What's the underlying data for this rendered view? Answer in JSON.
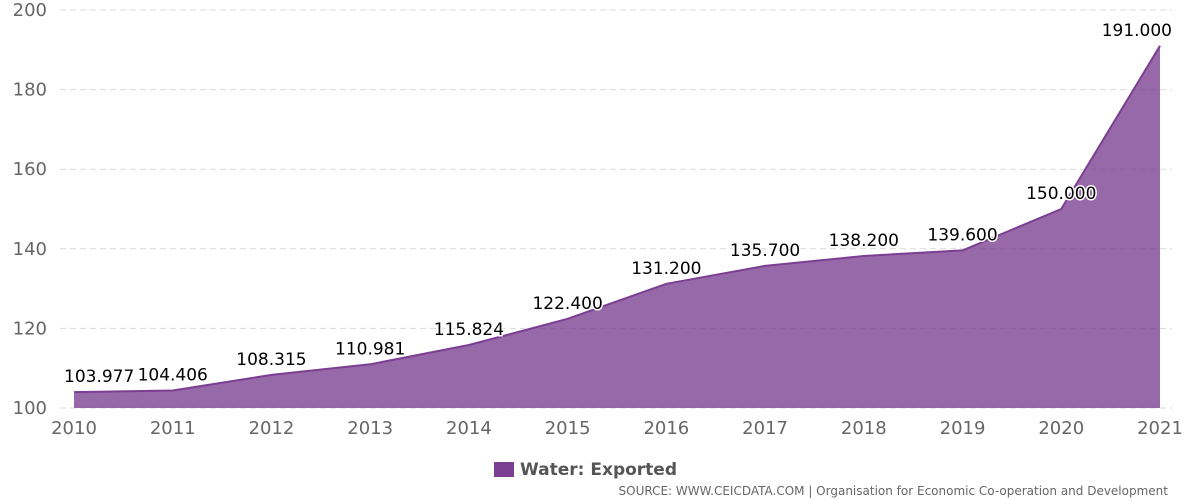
{
  "chart_data": {
    "type": "area",
    "categories": [
      "2010",
      "2011",
      "2012",
      "2013",
      "2014",
      "2015",
      "2016",
      "2017",
      "2018",
      "2019",
      "2020",
      "2021"
    ],
    "series": [
      {
        "name": "Water: Exported",
        "values": [
          103.977,
          104.406,
          108.315,
          110.981,
          115.824,
          122.4,
          131.2,
          135.7,
          138.2,
          139.6,
          150.0,
          191.0
        ],
        "value_labels": [
          "103.977",
          "104.406",
          "108.315",
          "110.981",
          "115.824",
          "122.400",
          "131.200",
          "135.700",
          "138.200",
          "139.600",
          "150.000",
          "191.000"
        ],
        "color": "#7b3f91"
      }
    ],
    "yticks": [
      "100",
      "120",
      "140",
      "160",
      "180",
      "200"
    ],
    "ylim": [
      100,
      200
    ],
    "grid": true,
    "legend_position": "bottom-center"
  },
  "source": "SOURCE: WWW.CEICDATA.COM | Organisation for Economic Co-operation and Development"
}
